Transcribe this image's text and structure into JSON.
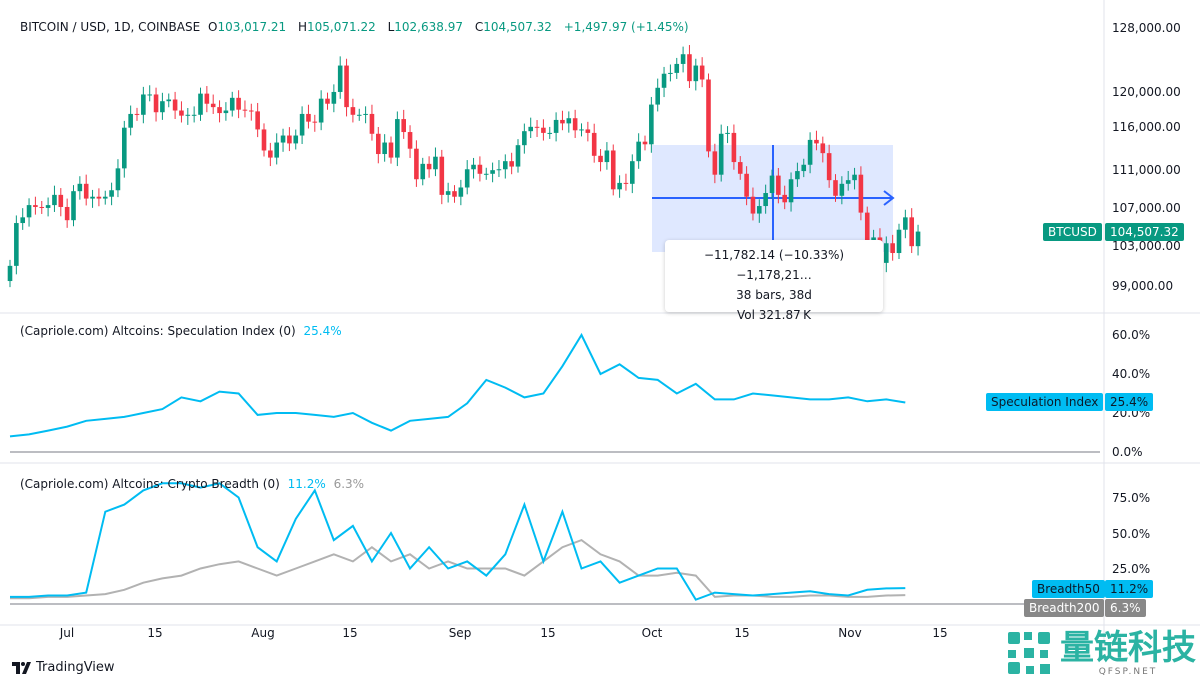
{
  "header": {
    "symbol": "BITCOIN / USD, 1D, COINBASE",
    "open_label": "O",
    "open": "103,017.21",
    "high_label": "H",
    "high": "105,071.22",
    "low_label": "L",
    "low": "102,638.97",
    "close_label": "C",
    "close": "104,507.32",
    "change": "+1,497.97 (+1.45%)"
  },
  "price_axis": [
    "128,000.00",
    "120,000.00",
    "116,000.00",
    "111,000.00",
    "107,000.00",
    "103,000.00",
    "99,000.00"
  ],
  "price_tag": {
    "name": "BTCUSD",
    "value": "104,507.32"
  },
  "measure": {
    "line1": "−11,782.14 (−10.33%) −1,178,21…",
    "line2": "38 bars, 38d",
    "line3": "Vol 321.87 K"
  },
  "spec_pane": {
    "title": "(Capriole.com) Altcoins: Speculation Index (0)",
    "value": "25.4%",
    "axis": [
      "60.0%",
      "40.0%",
      "20.0%",
      "0.0%"
    ],
    "tag_name": "Speculation Index",
    "tag_value": "25.4%"
  },
  "breadth_pane": {
    "title": "(Capriole.com) Altcoins: Crypto Breadth (0)",
    "value50": "11.2%",
    "value200": "6.3%",
    "axis": [
      "75.0%",
      "50.0%",
      "25.0%"
    ],
    "tag50_name": "Breadth50",
    "tag50_value": "11.2%",
    "tag200_name": "Breadth200",
    "tag200_value": "6.3%"
  },
  "time_axis": [
    "Jul",
    "15",
    "Aug",
    "15",
    "Sep",
    "15",
    "Oct",
    "15",
    "Nov",
    "15"
  ],
  "footer": {
    "brand": "TradingView"
  },
  "watermark": {
    "name": "量链科技",
    "url": "QFSP.NET"
  },
  "colors": {
    "up": "#089981",
    "down": "#f23645",
    "spec": "#00bcf2",
    "b200": "#b2b2b2",
    "measure": "#2962ff"
  },
  "chart_data": [
    {
      "type": "candlestick",
      "title": "BITCOIN / USD, 1D, COINBASE",
      "x_start": "2025-06-22",
      "x_end": "2025-11-12",
      "scale": "log",
      "ylim": [
        96000,
        130000
      ],
      "closes": [
        101000,
        105400,
        106000,
        107300,
        107100,
        107000,
        107300,
        108400,
        107100,
        105700,
        108800,
        109600,
        108000,
        108200,
        108000,
        108200,
        108900,
        111300,
        115900,
        117500,
        117400,
        119800,
        119800,
        117700,
        119000,
        119200,
        117900,
        117300,
        117400,
        117400,
        119900,
        118700,
        118300,
        117600,
        117900,
        119400,
        118000,
        117900,
        117800,
        115700,
        113300,
        112500,
        114200,
        115000,
        114100,
        115000,
        117500,
        116600,
        116500,
        119300,
        118700,
        120100,
        123300,
        118300,
        117400,
        117400,
        117500,
        115200,
        112900,
        114200,
        112500,
        116900,
        115400,
        113500,
        110100,
        111800,
        111200,
        112600,
        108400,
        108800,
        108200,
        109200,
        111200,
        111700,
        110700,
        110700,
        111100,
        111200,
        112100,
        111500,
        113900,
        115500,
        116000,
        115900,
        115300,
        115300,
        116800,
        116400,
        117000,
        115600,
        115700,
        115300,
        112700,
        112000,
        113300,
        109000,
        109700,
        109600,
        112100,
        114300,
        114000,
        118600,
        120600,
        122300,
        122400,
        123500,
        124700,
        121400,
        123300,
        121600,
        113200,
        110600,
        115200,
        115300,
        112000,
        110700,
        108200,
        106400,
        107200,
        108600,
        110500,
        108400,
        107600,
        110100,
        111000,
        111700,
        114500,
        114100,
        113000,
        110000,
        108300,
        109600,
        110000,
        110600,
        106500,
        101500,
        103900,
        101300,
        103300,
        102300,
        104700,
        106000,
        103000,
        104507.32
      ]
    },
    {
      "type": "line",
      "title": "Altcoins: Speculation Index",
      "step_days": 3,
      "ylim": [
        0,
        65
      ],
      "series": [
        {
          "name": "Speculation Index",
          "values": [
            8,
            9,
            11,
            13,
            16,
            17,
            18,
            20,
            22,
            28,
            26,
            31,
            30,
            19,
            20,
            20,
            19,
            18,
            20,
            15,
            11,
            16,
            17,
            18,
            25,
            37,
            33,
            28,
            30,
            44,
            60,
            40,
            45,
            38,
            37,
            30,
            35,
            27,
            27,
            30,
            29,
            28,
            27,
            27,
            28,
            26,
            27,
            25.4
          ]
        }
      ]
    },
    {
      "type": "line",
      "title": "Altcoins: Crypto Breadth",
      "step_days": 3,
      "ylim": [
        0,
        90
      ],
      "series": [
        {
          "name": "Breadth50",
          "values": [
            5,
            5,
            6,
            6,
            8,
            65,
            70,
            80,
            85,
            85,
            82,
            85,
            75,
            40,
            30,
            60,
            80,
            45,
            55,
            30,
            50,
            25,
            40,
            25,
            30,
            20,
            35,
            70,
            30,
            65,
            25,
            30,
            15,
            20,
            25,
            25,
            3,
            8,
            7,
            6,
            7,
            8,
            9,
            7,
            6,
            10,
            11,
            11.2
          ]
        },
        {
          "name": "Breadth200",
          "values": [
            4,
            4,
            5,
            5,
            6,
            7,
            10,
            15,
            18,
            20,
            25,
            28,
            30,
            25,
            20,
            25,
            30,
            35,
            30,
            40,
            30,
            35,
            25,
            30,
            25,
            25,
            25,
            20,
            30,
            40,
            45,
            35,
            30,
            20,
            20,
            22,
            20,
            5,
            6,
            6,
            5,
            5,
            6,
            6,
            5,
            5,
            6,
            6.3
          ]
        }
      ]
    }
  ]
}
